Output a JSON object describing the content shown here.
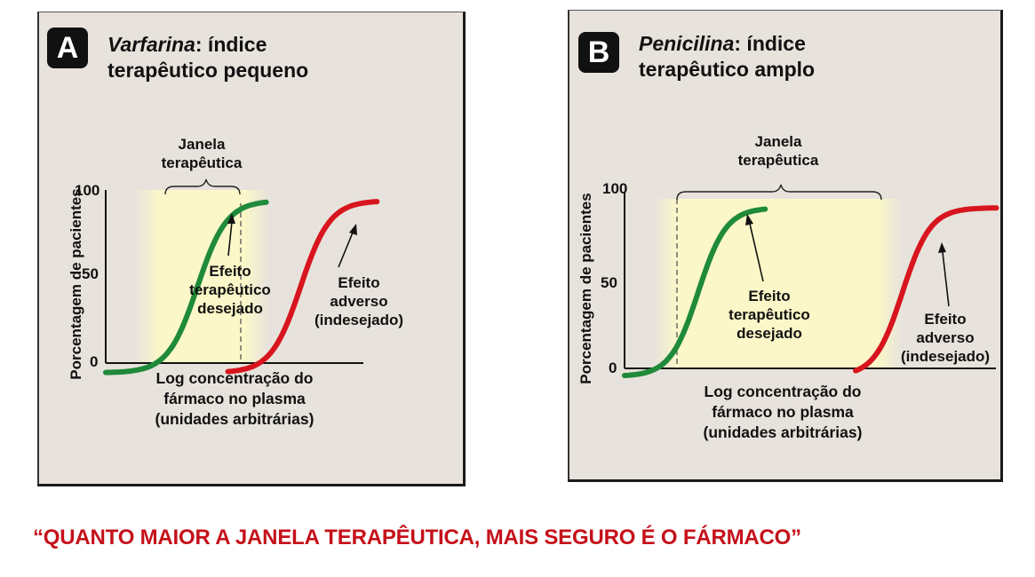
{
  "chart_data": [
    {
      "type": "line",
      "panel": "A",
      "title_drug": "Varfarina",
      "title_rest": ": índice",
      "title_line2": "terapêutico pequeno",
      "xlabel": [
        "Log concentração do",
        "fármaco no plasma",
        "(unidades arbitrárias)"
      ],
      "ylabel": "Porcentagem de pacientes",
      "yticks": [
        "0",
        "50",
        "100"
      ],
      "ylim": [
        0,
        100
      ],
      "window_label": [
        "Janela",
        "terapêutica"
      ],
      "series": [
        {
          "name": "Efeito terapêutico desejado",
          "color": "#1f8a3a",
          "midpoint": 2.4,
          "slope": 2.6,
          "x_range": [
            0,
            4.2
          ]
        },
        {
          "name": "Efeito adverso (indesejado)",
          "color": "#d8151e",
          "midpoint": 5.1,
          "slope": 2.6,
          "x_range": [
            3.2,
            7.1
          ]
        }
      ],
      "annotations": {
        "therapeutic": [
          "Efeito",
          "terapêutico",
          "desejado"
        ],
        "adverse": [
          "Efeito",
          "adverso",
          "(indesejado)"
        ]
      }
    },
    {
      "type": "line",
      "panel": "B",
      "title_drug": "Penicilina",
      "title_rest": ": índice",
      "title_line2": "terapêutico amplo",
      "xlabel": [
        "Log concentração do",
        "fármaco no plasma",
        "(unidades arbitrárias)"
      ],
      "ylabel": "Porcentagem de pacientes",
      "yticks": [
        "0",
        "50",
        "100"
      ],
      "ylim": [
        0,
        100
      ],
      "window_label": [
        "Janela",
        "terapêutica"
      ],
      "series": [
        {
          "name": "Efeito terapêutico desejado",
          "color": "#1f8a3a",
          "midpoint": 2.2,
          "slope": 2.4,
          "x_range": [
            0,
            4.2
          ]
        },
        {
          "name": "Efeito adverso (indesejado)",
          "color": "#d8151e",
          "midpoint": 8.3,
          "slope": 2.4,
          "x_range": [
            6.9,
            11.1
          ]
        }
      ],
      "annotations": {
        "therapeutic": [
          "Efeito",
          "terapêutico",
          "desejado"
        ],
        "adverse": [
          "Efeito",
          "adverso",
          "(indesejado)"
        ]
      }
    }
  ],
  "quote": "“QUANTO MAIOR A JANELA TERAPÊUTICA, MAIS SEGURO É O FÁRMACO”"
}
